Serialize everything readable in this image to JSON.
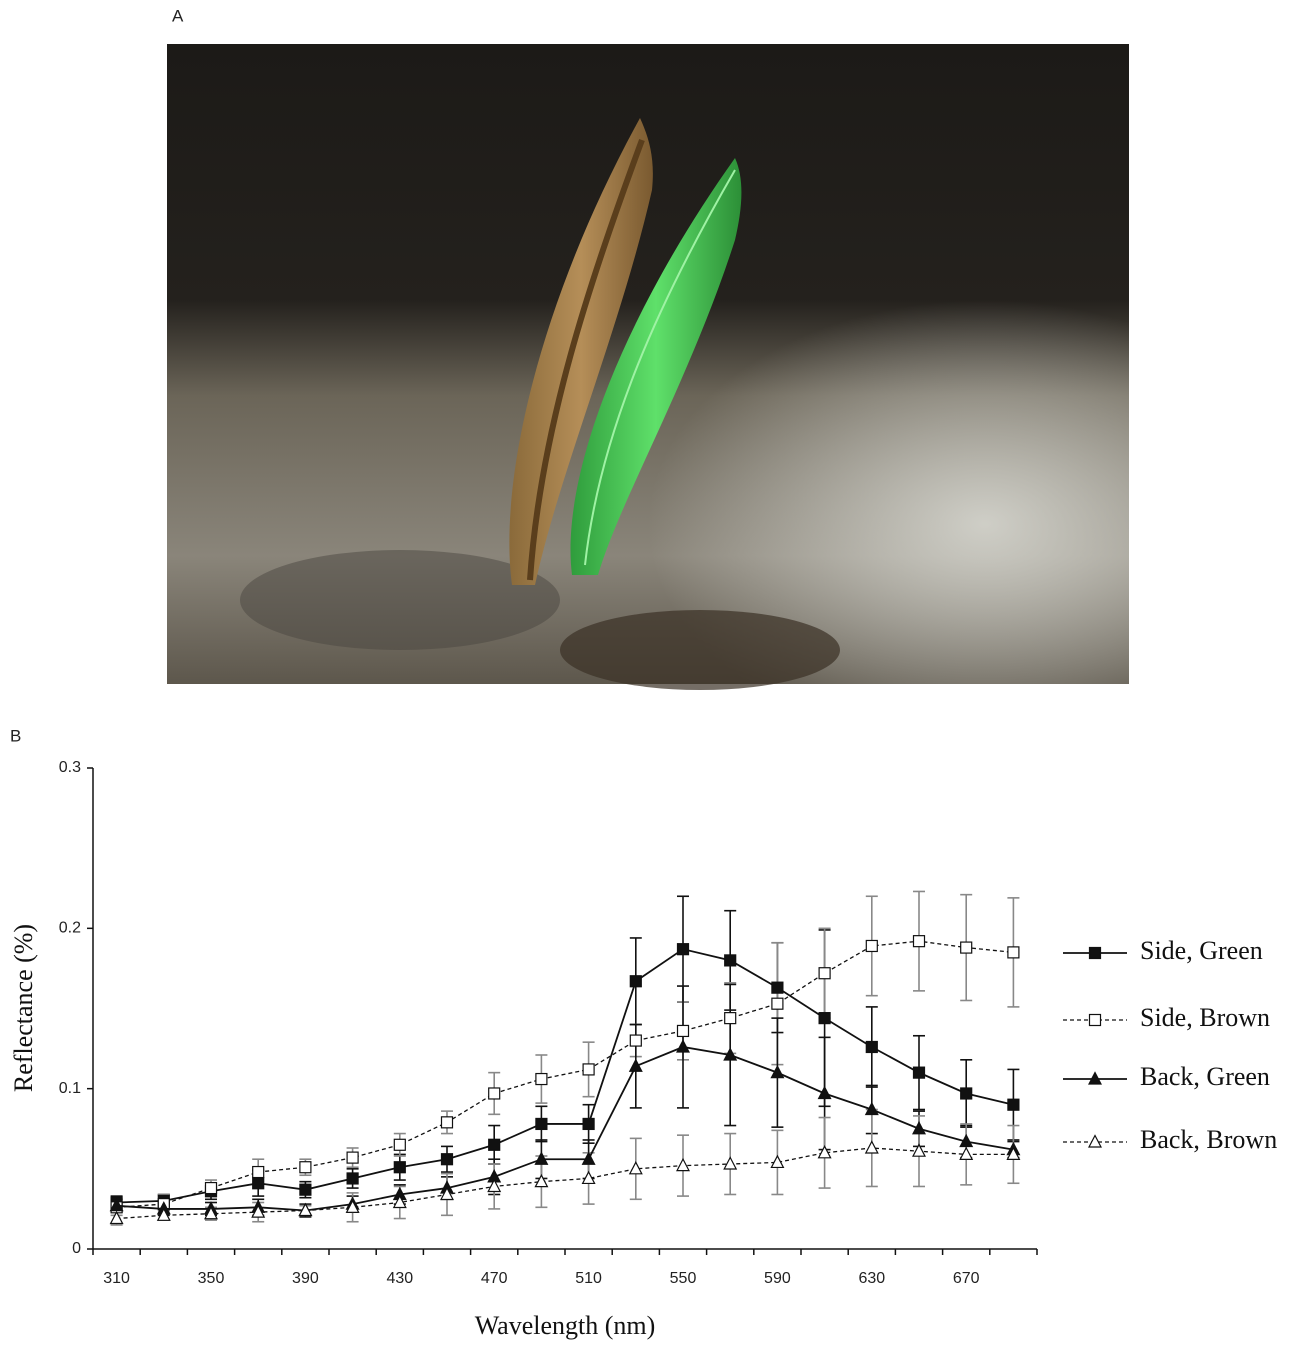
{
  "panels": {
    "a": "A",
    "b": "B"
  },
  "chart_data": {
    "type": "line",
    "x_label": "Wavelength (nm)",
    "y_label": "Reflectance (%)",
    "x": [
      310,
      330,
      350,
      370,
      390,
      410,
      430,
      450,
      470,
      490,
      510,
      530,
      550,
      570,
      590,
      610,
      630,
      650,
      670,
      690
    ],
    "xlim": [
      300,
      700
    ],
    "xticks": [
      310,
      350,
      390,
      430,
      470,
      510,
      550,
      590,
      630,
      670
    ],
    "xminorticks": [
      300,
      320,
      340,
      360,
      380,
      400,
      420,
      440,
      460,
      480,
      500,
      520,
      540,
      560,
      580,
      600,
      620,
      640,
      660,
      680,
      700
    ],
    "ylim": [
      0,
      0.3
    ],
    "yticks": [
      0,
      0.1,
      0.2,
      0.3
    ],
    "legend": "right",
    "series": [
      {
        "name": "Side, Green",
        "color": "#111111",
        "marker": "square",
        "filled": true,
        "dashed": false,
        "error_color": "#111111",
        "values": [
          0.029,
          0.03,
          0.036,
          0.041,
          0.037,
          0.044,
          0.051,
          0.056,
          0.065,
          0.078,
          0.078,
          0.167,
          0.187,
          0.18,
          0.163,
          0.144,
          0.126,
          0.11,
          0.097,
          0.09
        ],
        "errors": [
          0.004,
          0.004,
          0.005,
          0.008,
          0.005,
          0.006,
          0.008,
          0.008,
          0.012,
          0.011,
          0.012,
          0.027,
          0.033,
          0.031,
          0.028,
          0.055,
          0.025,
          0.023,
          0.021,
          0.022
        ]
      },
      {
        "name": "Side, Brown",
        "color": "#111111",
        "marker": "square",
        "filled": false,
        "dashed": true,
        "error_color": "#888888",
        "values": [
          0.026,
          0.028,
          0.038,
          0.048,
          0.051,
          0.057,
          0.065,
          0.079,
          0.097,
          0.106,
          0.112,
          0.13,
          0.136,
          0.144,
          0.153,
          0.172,
          0.189,
          0.192,
          0.188,
          0.185
        ],
        "errors": [
          0.005,
          0.006,
          0.005,
          0.008,
          0.005,
          0.006,
          0.007,
          0.007,
          0.013,
          0.015,
          0.017,
          0.01,
          0.018,
          0.022,
          0.038,
          0.028,
          0.031,
          0.031,
          0.033,
          0.034
        ]
      },
      {
        "name": "Back, Green",
        "color": "#111111",
        "marker": "triangle",
        "filled": true,
        "dashed": false,
        "error_color": "#111111",
        "values": [
          0.027,
          0.025,
          0.025,
          0.026,
          0.024,
          0.028,
          0.034,
          0.038,
          0.045,
          0.056,
          0.056,
          0.114,
          0.126,
          0.121,
          0.11,
          0.097,
          0.087,
          0.075,
          0.067,
          0.062
        ],
        "errors": [
          0.004,
          0.004,
          0.004,
          0.005,
          0.004,
          0.005,
          0.006,
          0.007,
          0.011,
          0.012,
          0.012,
          0.026,
          0.038,
          0.044,
          0.034,
          0.035,
          0.015,
          0.011,
          0.01,
          0.005
        ]
      },
      {
        "name": "Back, Brown",
        "color": "#111111",
        "marker": "triangle",
        "filled": false,
        "dashed": true,
        "error_color": "#888888",
        "values": [
          0.019,
          0.021,
          0.022,
          0.023,
          0.024,
          0.026,
          0.029,
          0.034,
          0.039,
          0.042,
          0.044,
          0.05,
          0.052,
          0.053,
          0.054,
          0.06,
          0.063,
          0.061,
          0.059,
          0.059
        ],
        "errors": [
          0.004,
          0.003,
          0.004,
          0.006,
          0.003,
          0.009,
          0.01,
          0.013,
          0.014,
          0.016,
          0.016,
          0.019,
          0.019,
          0.019,
          0.02,
          0.022,
          0.024,
          0.022,
          0.019,
          0.018
        ]
      }
    ]
  }
}
